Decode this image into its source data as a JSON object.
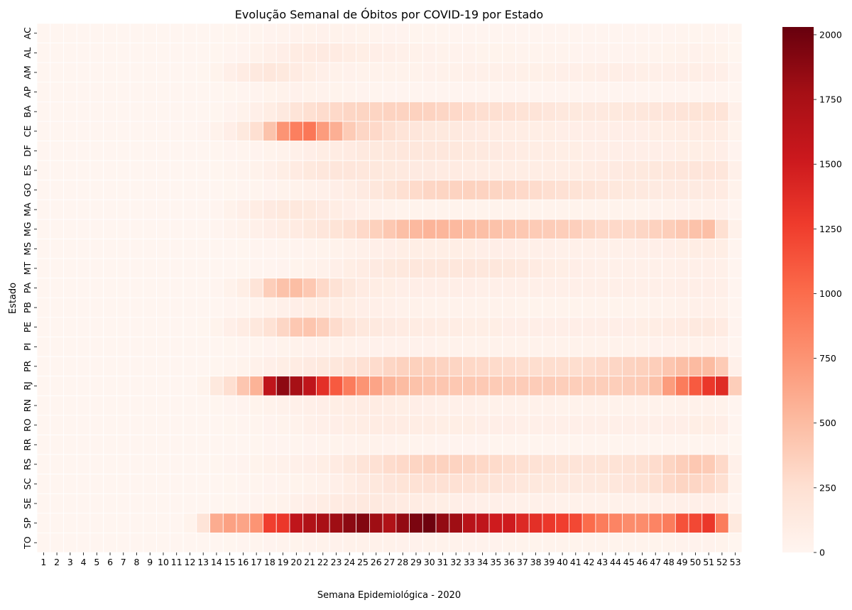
{
  "chart_data": {
    "type": "heatmap",
    "title": "Evolução Semanal de Óbitos por COVID-19 por Estado",
    "xlabel": "Semana Epidemiológica - 2020",
    "ylabel": "Estado",
    "colormap": "Reds",
    "grid": true,
    "colorbar": {
      "range": [
        0,
        2030
      ],
      "ticks": [
        0,
        250,
        500,
        750,
        1000,
        1250,
        1500,
        1750,
        2000
      ]
    },
    "states": [
      "AC",
      "AL",
      "AM",
      "AP",
      "BA",
      "CE",
      "DF",
      "ES",
      "GO",
      "MA",
      "MG",
      "MS",
      "MT",
      "PA",
      "PB",
      "PE",
      "PI",
      "PR",
      "RJ",
      "RN",
      "RO",
      "RR",
      "RS",
      "SC",
      "SE",
      "SP",
      "TO"
    ],
    "weeks": [
      1,
      2,
      3,
      4,
      5,
      6,
      7,
      8,
      9,
      10,
      11,
      12,
      13,
      14,
      15,
      16,
      17,
      18,
      19,
      20,
      21,
      22,
      23,
      24,
      25,
      26,
      27,
      28,
      29,
      30,
      31,
      32,
      33,
      34,
      35,
      36,
      37,
      38,
      39,
      40,
      41,
      42,
      43,
      44,
      45,
      46,
      47,
      48,
      49,
      50,
      51,
      52,
      53
    ],
    "values": [
      [
        0,
        0,
        0,
        0,
        0,
        0,
        0,
        0,
        0,
        0,
        0,
        0,
        0,
        0,
        5,
        10,
        15,
        20,
        25,
        35,
        40,
        45,
        40,
        35,
        30,
        25,
        20,
        20,
        15,
        15,
        15,
        12,
        12,
        10,
        10,
        10,
        10,
        8,
        8,
        8,
        8,
        8,
        8,
        8,
        8,
        10,
        10,
        12,
        15,
        18,
        15,
        10,
        5
      ],
      [
        0,
        0,
        0,
        0,
        0,
        0,
        0,
        0,
        0,
        0,
        0,
        0,
        0,
        5,
        10,
        20,
        40,
        60,
        80,
        110,
        120,
        130,
        120,
        100,
        90,
        80,
        70,
        60,
        50,
        45,
        40,
        35,
        35,
        30,
        30,
        30,
        25,
        25,
        25,
        25,
        20,
        20,
        20,
        20,
        20,
        22,
        25,
        30,
        40,
        45,
        40,
        30,
        5
      ],
      [
        0,
        0,
        0,
        0,
        0,
        0,
        0,
        0,
        0,
        0,
        0,
        0,
        5,
        30,
        70,
        110,
        140,
        170,
        150,
        120,
        90,
        70,
        50,
        45,
        40,
        40,
        40,
        40,
        40,
        45,
        50,
        50,
        55,
        60,
        60,
        60,
        65,
        65,
        65,
        70,
        70,
        75,
        80,
        85,
        80,
        75,
        70,
        70,
        80,
        85,
        80,
        70,
        20
      ],
      [
        0,
        0,
        0,
        0,
        0,
        0,
        0,
        0,
        0,
        0,
        0,
        0,
        0,
        2,
        5,
        10,
        20,
        30,
        40,
        45,
        40,
        35,
        30,
        25,
        20,
        15,
        12,
        10,
        10,
        10,
        10,
        10,
        10,
        10,
        10,
        10,
        10,
        10,
        10,
        10,
        10,
        10,
        10,
        10,
        10,
        10,
        10,
        10,
        12,
        12,
        12,
        10,
        2
      ],
      [
        0,
        0,
        0,
        0,
        0,
        0,
        0,
        0,
        0,
        0,
        0,
        0,
        0,
        5,
        20,
        40,
        70,
        100,
        140,
        200,
        250,
        280,
        300,
        320,
        330,
        330,
        340,
        340,
        350,
        340,
        320,
        300,
        280,
        260,
        250,
        240,
        220,
        200,
        180,
        160,
        150,
        140,
        140,
        150,
        160,
        170,
        180,
        190,
        200,
        210,
        210,
        200,
        60
      ],
      [
        0,
        0,
        0,
        0,
        0,
        0,
        0,
        0,
        0,
        0,
        0,
        0,
        10,
        40,
        80,
        150,
        250,
        450,
        750,
        880,
        930,
        700,
        580,
        400,
        320,
        300,
        250,
        200,
        180,
        160,
        150,
        140,
        130,
        120,
        110,
        100,
        100,
        90,
        90,
        80,
        80,
        80,
        80,
        80,
        80,
        80,
        90,
        90,
        100,
        110,
        110,
        100,
        30
      ],
      [
        0,
        0,
        0,
        0,
        0,
        0,
        0,
        0,
        0,
        0,
        0,
        0,
        0,
        5,
        10,
        15,
        20,
        30,
        40,
        60,
        80,
        100,
        110,
        120,
        140,
        150,
        160,
        170,
        170,
        170,
        170,
        160,
        150,
        140,
        130,
        120,
        110,
        100,
        100,
        90,
        90,
        80,
        80,
        80,
        80,
        80,
        80,
        80,
        90,
        90,
        90,
        80,
        20
      ],
      [
        0,
        0,
        0,
        0,
        0,
        0,
        0,
        0,
        0,
        0,
        0,
        0,
        0,
        5,
        15,
        25,
        40,
        60,
        90,
        120,
        150,
        170,
        180,
        180,
        170,
        160,
        150,
        140,
        130,
        130,
        120,
        120,
        110,
        110,
        100,
        100,
        100,
        100,
        100,
        100,
        100,
        110,
        120,
        130,
        140,
        150,
        160,
        170,
        180,
        190,
        190,
        180,
        60
      ],
      [
        0,
        0,
        0,
        0,
        0,
        0,
        0,
        0,
        0,
        0,
        0,
        0,
        0,
        2,
        5,
        10,
        15,
        20,
        30,
        40,
        50,
        60,
        80,
        100,
        130,
        170,
        210,
        250,
        290,
        320,
        330,
        340,
        350,
        340,
        330,
        320,
        300,
        280,
        260,
        240,
        220,
        200,
        180,
        160,
        150,
        140,
        130,
        130,
        130,
        130,
        130,
        120,
        40
      ],
      [
        0,
        0,
        0,
        0,
        0,
        0,
        0,
        0,
        0,
        0,
        0,
        0,
        0,
        10,
        40,
        70,
        100,
        130,
        150,
        160,
        150,
        130,
        100,
        80,
        60,
        50,
        40,
        30,
        30,
        30,
        30,
        30,
        30,
        30,
        30,
        30,
        30,
        30,
        30,
        30,
        30,
        30,
        30,
        30,
        30,
        30,
        35,
        40,
        45,
        50,
        50,
        45,
        10
      ],
      [
        0,
        0,
        0,
        0,
        0,
        0,
        0,
        0,
        0,
        0,
        0,
        0,
        0,
        10,
        25,
        40,
        60,
        80,
        100,
        120,
        150,
        180,
        210,
        250,
        300,
        360,
        420,
        480,
        520,
        550,
        540,
        520,
        500,
        480,
        460,
        440,
        420,
        400,
        390,
        380,
        370,
        330,
        300,
        300,
        300,
        320,
        350,
        380,
        420,
        460,
        480,
        250,
        50
      ],
      [
        0,
        0,
        0,
        0,
        0,
        0,
        0,
        0,
        0,
        0,
        0,
        0,
        0,
        0,
        2,
        5,
        8,
        10,
        15,
        20,
        25,
        30,
        40,
        50,
        60,
        70,
        80,
        90,
        90,
        90,
        90,
        90,
        90,
        80,
        80,
        80,
        70,
        70,
        70,
        60,
        60,
        60,
        60,
        60,
        60,
        70,
        70,
        80,
        90,
        100,
        100,
        90,
        10
      ],
      [
        0,
        0,
        0,
        0,
        0,
        0,
        0,
        0,
        0,
        0,
        0,
        0,
        0,
        0,
        2,
        5,
        8,
        12,
        20,
        30,
        40,
        50,
        70,
        90,
        110,
        130,
        150,
        160,
        170,
        170,
        170,
        170,
        180,
        170,
        170,
        160,
        140,
        120,
        100,
        90,
        80,
        70,
        60,
        60,
        60,
        60,
        60,
        60,
        70,
        70,
        70,
        60,
        10
      ],
      [
        0,
        0,
        0,
        0,
        0,
        0,
        0,
        0,
        0,
        0,
        0,
        0,
        0,
        10,
        40,
        90,
        200,
        380,
        460,
        490,
        420,
        300,
        230,
        160,
        120,
        100,
        90,
        80,
        80,
        80,
        80,
        80,
        80,
        70,
        70,
        70,
        70,
        70,
        70,
        70,
        70,
        70,
        70,
        70,
        70,
        70,
        70,
        70,
        80,
        80,
        80,
        70,
        10
      ],
      [
        0,
        0,
        0,
        0,
        0,
        0,
        0,
        0,
        0,
        0,
        0,
        0,
        0,
        2,
        8,
        15,
        25,
        40,
        60,
        80,
        90,
        100,
        100,
        90,
        80,
        70,
        60,
        50,
        50,
        40,
        40,
        40,
        40,
        40,
        40,
        40,
        30,
        30,
        30,
        30,
        30,
        30,
        30,
        30,
        30,
        30,
        40,
        40,
        50,
        60,
        60,
        50,
        10
      ],
      [
        0,
        0,
        0,
        0,
        0,
        0,
        0,
        0,
        0,
        0,
        0,
        0,
        5,
        30,
        70,
        110,
        160,
        230,
        320,
        420,
        440,
        380,
        280,
        200,
        160,
        140,
        130,
        120,
        110,
        110,
        100,
        100,
        90,
        90,
        90,
        80,
        80,
        80,
        80,
        80,
        80,
        80,
        80,
        80,
        80,
        90,
        100,
        110,
        120,
        140,
        140,
        120,
        20
      ],
      [
        0,
        0,
        0,
        0,
        0,
        0,
        0,
        0,
        0,
        0,
        0,
        0,
        0,
        2,
        5,
        10,
        15,
        20,
        30,
        40,
        45,
        50,
        50,
        50,
        45,
        45,
        45,
        45,
        45,
        45,
        40,
        40,
        40,
        40,
        40,
        40,
        40,
        40,
        40,
        40,
        40,
        40,
        40,
        40,
        40,
        40,
        45,
        45,
        50,
        50,
        50,
        45,
        10
      ],
      [
        0,
        0,
        0,
        0,
        0,
        0,
        0,
        0,
        0,
        0,
        0,
        0,
        0,
        5,
        15,
        30,
        50,
        70,
        90,
        110,
        130,
        150,
        170,
        200,
        240,
        280,
        320,
        350,
        360,
        360,
        340,
        330,
        310,
        300,
        290,
        280,
        270,
        270,
        270,
        270,
        270,
        280,
        300,
        320,
        340,
        360,
        380,
        430,
        480,
        510,
        500,
        400,
        60
      ],
      [
        0,
        0,
        0,
        0,
        0,
        0,
        0,
        0,
        0,
        0,
        0,
        0,
        30,
        150,
        260,
        430,
        560,
        1600,
        1870,
        1760,
        1600,
        1350,
        1100,
        900,
        750,
        650,
        550,
        500,
        460,
        440,
        430,
        420,
        420,
        410,
        400,
        390,
        390,
        390,
        390,
        380,
        380,
        380,
        380,
        380,
        390,
        400,
        460,
        700,
        900,
        1100,
        1300,
        1380,
        380
      ],
      [
        0,
        0,
        0,
        0,
        0,
        0,
        0,
        0,
        0,
        0,
        0,
        0,
        0,
        5,
        10,
        20,
        30,
        40,
        50,
        60,
        70,
        80,
        90,
        100,
        110,
        110,
        100,
        90,
        80,
        70,
        60,
        60,
        60,
        50,
        50,
        50,
        50,
        50,
        50,
        40,
        40,
        40,
        40,
        40,
        40,
        40,
        40,
        40,
        50,
        50,
        50,
        40,
        10
      ],
      [
        0,
        0,
        0,
        0,
        0,
        0,
        0,
        0,
        0,
        0,
        0,
        0,
        0,
        2,
        5,
        10,
        15,
        20,
        30,
        40,
        60,
        70,
        80,
        90,
        100,
        110,
        110,
        110,
        100,
        100,
        90,
        90,
        90,
        80,
        80,
        80,
        70,
        70,
        70,
        70,
        70,
        70,
        70,
        70,
        70,
        70,
        70,
        80,
        80,
        90,
        90,
        80,
        10
      ],
      [
        0,
        0,
        0,
        0,
        0,
        0,
        0,
        0,
        0,
        0,
        0,
        0,
        0,
        0,
        2,
        3,
        5,
        8,
        10,
        15,
        20,
        25,
        30,
        35,
        40,
        40,
        35,
        30,
        25,
        25,
        20,
        20,
        20,
        20,
        15,
        15,
        15,
        15,
        15,
        15,
        15,
        15,
        15,
        15,
        15,
        15,
        15,
        15,
        15,
        15,
        15,
        15,
        5
      ],
      [
        0,
        0,
        0,
        0,
        0,
        0,
        0,
        0,
        0,
        0,
        0,
        0,
        0,
        5,
        10,
        20,
        30,
        40,
        50,
        60,
        70,
        90,
        120,
        160,
        200,
        240,
        280,
        300,
        330,
        350,
        350,
        340,
        330,
        310,
        290,
        270,
        250,
        230,
        220,
        210,
        200,
        200,
        210,
        220,
        230,
        250,
        280,
        330,
        380,
        420,
        400,
        300,
        60
      ],
      [
        0,
        0,
        0,
        0,
        0,
        0,
        0,
        0,
        0,
        0,
        0,
        0,
        0,
        2,
        5,
        10,
        15,
        20,
        25,
        30,
        40,
        50,
        70,
        100,
        130,
        160,
        190,
        210,
        230,
        240,
        240,
        240,
        230,
        220,
        200,
        190,
        170,
        160,
        150,
        140,
        140,
        140,
        150,
        170,
        190,
        220,
        250,
        300,
        330,
        320,
        300,
        250,
        40
      ],
      [
        0,
        0,
        0,
        0,
        0,
        0,
        0,
        0,
        0,
        0,
        0,
        0,
        0,
        2,
        5,
        10,
        20,
        30,
        40,
        60,
        80,
        100,
        120,
        130,
        140,
        140,
        130,
        120,
        110,
        100,
        90,
        80,
        80,
        70,
        70,
        60,
        60,
        60,
        60,
        50,
        50,
        50,
        50,
        50,
        50,
        50,
        60,
        60,
        70,
        70,
        70,
        60,
        10
      ],
      [
        0,
        0,
        0,
        0,
        0,
        0,
        0,
        0,
        0,
        0,
        0,
        30,
        200,
        600,
        670,
        650,
        750,
        1250,
        1300,
        1600,
        1700,
        1750,
        1800,
        1880,
        1920,
        1800,
        1700,
        1850,
        1950,
        2000,
        1850,
        1800,
        1650,
        1600,
        1500,
        1500,
        1400,
        1350,
        1300,
        1250,
        1200,
        1000,
        900,
        850,
        800,
        800,
        850,
        900,
        1150,
        1200,
        1300,
        900,
        150
      ],
      [
        0,
        0,
        0,
        0,
        0,
        0,
        0,
        0,
        0,
        0,
        0,
        0,
        0,
        2,
        5,
        10,
        15,
        20,
        25,
        30,
        35,
        40,
        45,
        50,
        50,
        50,
        50,
        45,
        45,
        40,
        40,
        40,
        35,
        35,
        35,
        30,
        30,
        30,
        30,
        30,
        30,
        30,
        30,
        30,
        30,
        30,
        30,
        30,
        35,
        35,
        35,
        30,
        5
      ]
    ]
  }
}
